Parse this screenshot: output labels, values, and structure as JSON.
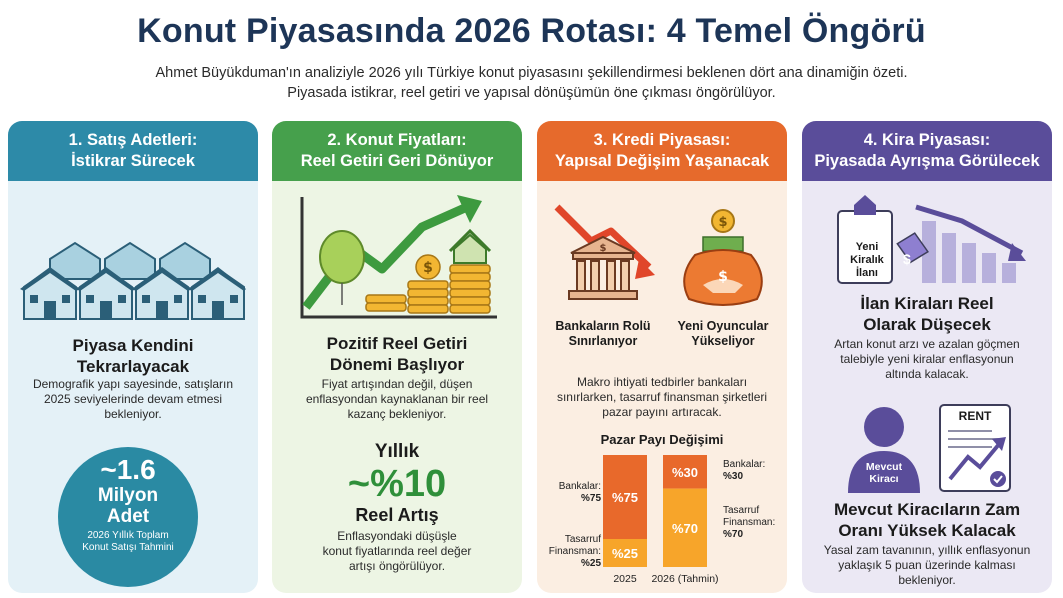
{
  "title": "Konut Piyasasında 2026 Rotası: 4 Temel Öngörü",
  "subtitle_line1": "Ahmet Büyükduman'ın analiziyle 2026 yılı Türkiye konut piyasasını şekillendirmesi beklenen dört ana dinamiğin özeti.",
  "subtitle_line2": "Piyasada istikrar, reel getiri ve yapısal dönüşümün öne çıkması öngörülüyor.",
  "colors": {
    "teal": "#2d8aa8",
    "green": "#46a04c",
    "orange": "#e66a2c",
    "purple": "#5a4d9a"
  },
  "cards": [
    {
      "header_line1": "1. Satış Adetleri:",
      "header_line2": "İstikrar Sürecek",
      "heading_line1": "Piyasa Kendini",
      "heading_line2": "Tekrarlayacak",
      "text_lines": [
        "Demografik yapı sayesinde, satışların",
        "2025 seviyelerinde devam etmesi",
        "bekleniyor."
      ],
      "stat_value": "~1.6",
      "stat_unit_line1": "Milyon",
      "stat_unit_line2": "Adet",
      "stat_caption_line1": "2026 Yıllık Toplam",
      "stat_caption_line2": "Konut Satışı Tahmini"
    },
    {
      "header_line1": "2. Konut Fiyatları:",
      "header_line2": "Reel Getiri Geri Dönüyor",
      "heading_line1": "Pozitif Reel Getiri",
      "heading_line2": "Dönemi Başlıyor",
      "text_lines": [
        "Fiyat artışından değil, düşen",
        "enflasyondan kaynaklanan bir reel",
        "kazanç bekleniyor."
      ],
      "stat_label": "Yıllık",
      "stat_value": "~%10",
      "stat_unit": "Reel Artış",
      "stat_caption_lines": [
        "Enflasyondaki düşüşle",
        "konut fiyatlarında reel değer",
        "artışı öngörülüyor."
      ]
    },
    {
      "header_line1": "3. Kredi Piyasası:",
      "header_line2": "Yapısal Değişim Yaşanacak",
      "icon_label_bank_line1": "Bankaların Rolü",
      "icon_label_bank_line2": "Sınırlanıyor",
      "icon_label_new_line1": "Yeni Oyuncular",
      "icon_label_new_line2": "Yükseliyor",
      "text_lines": [
        "Makro ihtiyati tedbirler bankaları",
        "sınırlarken, tasarruf finansman şirketleri",
        "pazar payını artıracak."
      ],
      "chart_title": "Pazar Payı Değişimi"
    },
    {
      "header_line1": "4. Kira Piyasası:",
      "header_line2": "Piyasada Ayrışma Görülecek",
      "sign_line1": "Yeni",
      "sign_line2": "Kiralık",
      "sign_line3": "İlanı",
      "price_tag_symbol": "$",
      "heading1_line1": "İlan Kiraları Reel",
      "heading1_line2": "Olarak Düşecek",
      "text1_lines": [
        "Artan konut arzı ve azalan göçmen",
        "talebiyle yeni kiralar enflasyonun",
        "altında kalacak."
      ],
      "tenant_label_line1": "Mevcut",
      "tenant_label_line2": "Kiracı",
      "doc_label": "RENT",
      "heading2_line1": "Mevcut Kiracıların Zam",
      "heading2_line2": "Oranı Yüksek Kalacak",
      "text2_lines": [
        "Yasal zam tavanının, yıllık enflasyonun",
        "yaklaşık 5 puan üzerinde kalması",
        "bekleniyor."
      ]
    }
  ],
  "chart_data": {
    "type": "bar",
    "title": "Pazar Payı Değişimi",
    "categories": [
      "2025",
      "2026 (Tahmin)"
    ],
    "series": [
      {
        "name": "Bankalar",
        "values": [
          75,
          30
        ],
        "labels": [
          "%75",
          "%30"
        ],
        "color": "#e8692b"
      },
      {
        "name": "Tasarruf Finansman",
        "values": [
          25,
          70
        ],
        "labels": [
          "%25",
          "%70"
        ],
        "color": "#f7a52a"
      }
    ],
    "side_labels": {
      "left_bank_line1": "Bankalar:",
      "left_bank_line2": "%75",
      "left_tf_line1": "Tasarruf",
      "left_tf_line2": "Finansman:",
      "left_tf_line3": "%25",
      "right_bank_line1": "Bankalar:",
      "right_bank_line2": "%30",
      "right_tf_line1": "Tasarruf",
      "right_tf_line2": "Finansman:",
      "right_tf_line3": "%70"
    },
    "ylim": [
      0,
      100
    ]
  }
}
